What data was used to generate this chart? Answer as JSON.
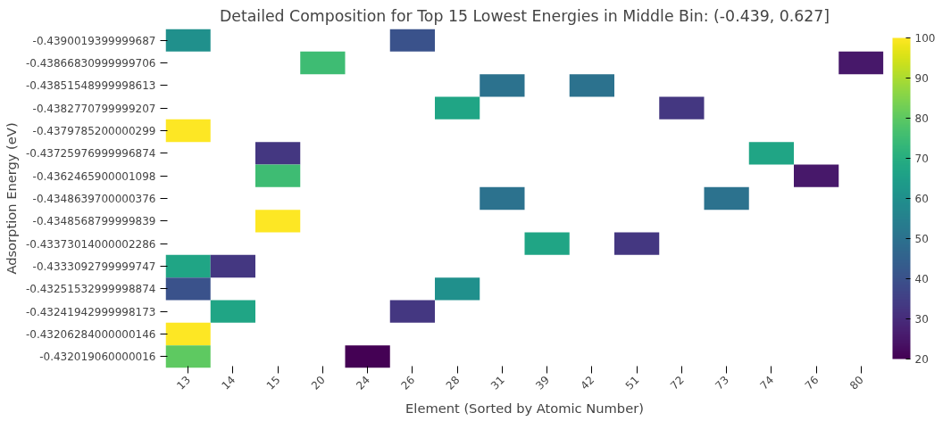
{
  "chart_data": {
    "type": "heatmap",
    "title": "Detailed Composition for Top 15 Lowest Energies in Middle Bin: (-0.439, 0.627]",
    "xlabel": "Element (Sorted by Atomic Number)",
    "ylabel": "Adsorption Energy (eV)",
    "categories": [
      "13",
      "14",
      "15",
      "20",
      "24",
      "26",
      "28",
      "31",
      "39",
      "42",
      "51",
      "72",
      "73",
      "74",
      "76",
      "80"
    ],
    "y_categories": [
      "-0.4390019399999687",
      "-0.43866830999999706",
      "-0.43851548999998613",
      "-0.4382770799999207",
      "-0.4379785200000299",
      "-0.43725976999996874",
      "-0.4362465900001098",
      "-0.4348639700000376",
      "-0.4348568799999839",
      "-0.43373014000002286",
      "-0.4333092799999747",
      "-0.43251532999998874",
      "-0.43241942999998173",
      "-0.43206284000000146",
      "-0.432019060000016"
    ],
    "cells": [
      [
        60,
        null,
        null,
        null,
        null,
        40,
        null,
        null,
        null,
        null,
        null,
        null,
        null,
        null,
        null,
        null
      ],
      [
        null,
        null,
        null,
        75,
        null,
        null,
        null,
        null,
        null,
        null,
        null,
        null,
        null,
        null,
        null,
        25
      ],
      [
        null,
        null,
        null,
        null,
        null,
        null,
        null,
        50,
        null,
        50,
        null,
        null,
        null,
        null,
        null,
        null
      ],
      [
        null,
        null,
        null,
        null,
        null,
        null,
        67,
        null,
        null,
        null,
        null,
        33,
        null,
        null,
        null,
        null
      ],
      [
        100,
        null,
        null,
        null,
        null,
        null,
        null,
        null,
        null,
        null,
        null,
        null,
        null,
        null,
        null,
        null
      ],
      [
        null,
        null,
        33,
        null,
        null,
        null,
        null,
        null,
        null,
        null,
        null,
        null,
        null,
        67,
        null,
        null
      ],
      [
        null,
        null,
        75,
        null,
        null,
        null,
        null,
        null,
        null,
        null,
        null,
        null,
        null,
        null,
        25,
        null
      ],
      [
        null,
        null,
        null,
        null,
        null,
        null,
        null,
        50,
        null,
        null,
        null,
        null,
        50,
        null,
        null,
        null
      ],
      [
        null,
        null,
        100,
        null,
        null,
        null,
        null,
        null,
        null,
        null,
        null,
        null,
        null,
        null,
        null,
        null
      ],
      [
        null,
        null,
        null,
        null,
        null,
        null,
        null,
        null,
        67,
        null,
        33,
        null,
        null,
        null,
        null,
        null
      ],
      [
        67,
        33,
        null,
        null,
        null,
        null,
        null,
        null,
        null,
        null,
        null,
        null,
        null,
        null,
        null,
        null
      ],
      [
        40,
        null,
        null,
        null,
        null,
        null,
        60,
        null,
        null,
        null,
        null,
        null,
        null,
        null,
        null,
        null
      ],
      [
        null,
        67,
        null,
        null,
        null,
        33,
        null,
        null,
        null,
        null,
        null,
        null,
        null,
        null,
        null,
        null
      ],
      [
        100,
        null,
        null,
        null,
        null,
        null,
        null,
        null,
        null,
        null,
        null,
        null,
        null,
        null,
        null,
        null
      ],
      [
        80,
        null,
        null,
        null,
        20,
        null,
        null,
        null,
        null,
        null,
        null,
        null,
        null,
        null,
        null,
        null
      ]
    ],
    "clim": [
      20,
      100
    ],
    "cticks": [
      20,
      30,
      40,
      50,
      60,
      70,
      80,
      90,
      100
    ]
  }
}
